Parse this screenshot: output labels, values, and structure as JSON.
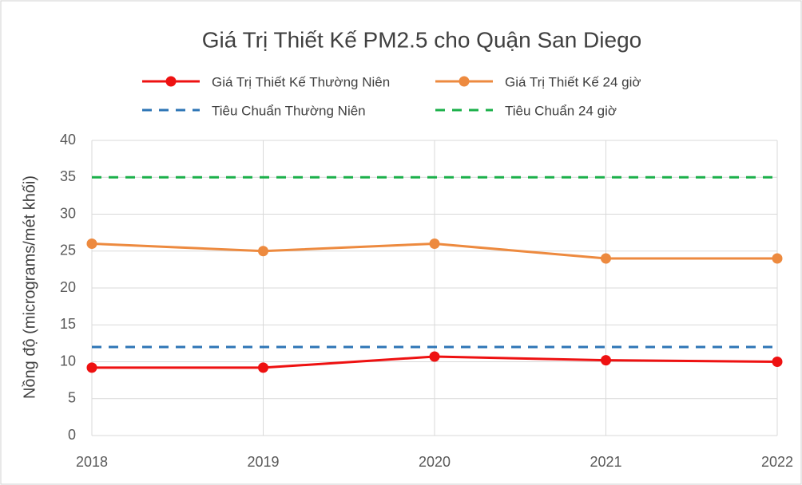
{
  "chart_data": {
    "type": "line",
    "title": "Giá Trị Thiết Kế PM2.5 cho Quận San Diego",
    "y_label": "Nồng độ (micrograms/mét khối)",
    "categories": [
      "2018",
      "2019",
      "2020",
      "2021",
      "2022"
    ],
    "series": [
      {
        "name": "Giá Trị Thiết Kế Thường Niên",
        "color": "#ee1111",
        "marker": true,
        "dashed": false,
        "values": [
          9.2,
          9.2,
          10.7,
          10.2,
          10.0
        ]
      },
      {
        "name": "Giá Trị Thiết Kế 24 giờ",
        "color": "#ed8a3f",
        "marker": true,
        "dashed": false,
        "values": [
          26,
          25,
          26,
          24,
          24
        ]
      },
      {
        "name": "Tiêu Chuẩn Thường Niên",
        "color": "#2e75b6",
        "marker": false,
        "dashed": true,
        "values": [
          12,
          12,
          12,
          12,
          12
        ]
      },
      {
        "name": "Tiêu Chuẩn 24 giờ",
        "color": "#1bb04a",
        "marker": false,
        "dashed": true,
        "values": [
          35,
          35,
          35,
          35,
          35
        ]
      }
    ],
    "ylim": [
      0,
      40
    ],
    "yticks": [
      0,
      5,
      10,
      15,
      20,
      25,
      30,
      35,
      40
    ],
    "grid": true,
    "legend": "top"
  }
}
